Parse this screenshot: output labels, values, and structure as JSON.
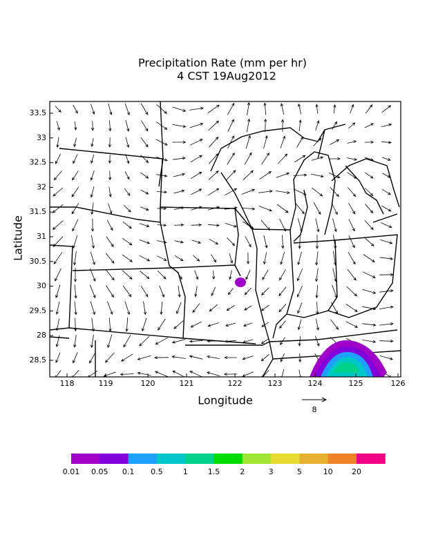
{
  "header": {
    "title": "Precipitation Rate (mm per hr)",
    "subtitle": "4 CST 19Aug2012"
  },
  "axes": {
    "x_title": "Longitude",
    "y_title": "Latitude",
    "x_labels": [
      "118",
      "119",
      "120",
      "121",
      "122",
      "123",
      "124",
      "125",
      "126"
    ],
    "y_labels": [
      "33.5",
      "33",
      "32.5",
      "32",
      "31.5",
      "31",
      "30.5",
      "30",
      "29.5",
      "28",
      "28.5"
    ]
  },
  "vector_key": {
    "label": "8"
  },
  "colorbar": {
    "labels": [
      "0.01",
      "0.05",
      "0.1",
      "0.5",
      "1",
      "1.5",
      "2",
      "3",
      "5",
      "10",
      "20"
    ],
    "colors": [
      "#a000c8",
      "#8200dc",
      "#1ea0ff",
      "#00c8c8",
      "#00d28c",
      "#00dc00",
      "#a0e632",
      "#e6dc32",
      "#e6af2d",
      "#f08228",
      "#f00082"
    ]
  }
}
